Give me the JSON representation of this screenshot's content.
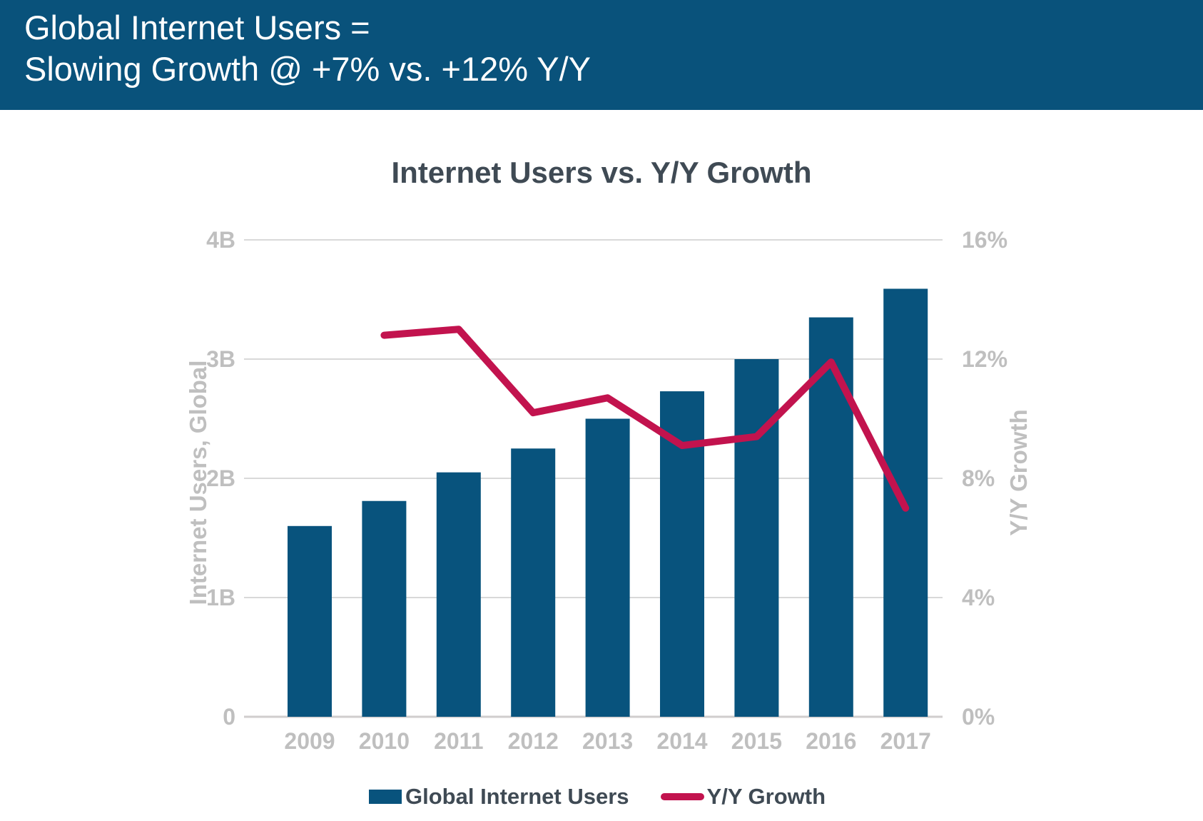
{
  "header": {
    "line1": "Global Internet Users =",
    "line2": "Slowing Growth @ +7% vs. +12% Y/Y",
    "bg_color": "#09527B",
    "text_color": "#FFFFFF"
  },
  "chart": {
    "title": "Internet Users vs. Y/Y Growth",
    "left_axis_title": "Internet Users, Global",
    "right_axis_title": "Y/Y Growth",
    "legend": {
      "bar_label": "Global Internet Users",
      "line_label": "Y/Y Growth"
    }
  },
  "chart_data": {
    "type": "bar",
    "subtype": "bar+line dual axis",
    "title": "Internet Users vs. Y/Y Growth",
    "categories": [
      "2009",
      "2010",
      "2011",
      "2012",
      "2013",
      "2014",
      "2015",
      "2016",
      "2017"
    ],
    "series": [
      {
        "name": "Global Internet Users",
        "type": "bar",
        "axis": "left",
        "unit": "billions",
        "values": [
          1.6,
          1.81,
          2.05,
          2.25,
          2.5,
          2.73,
          3.0,
          3.35,
          3.59
        ],
        "color": "#08537D"
      },
      {
        "name": "Y/Y Growth",
        "type": "line",
        "axis": "right",
        "unit": "percent",
        "values": [
          null,
          12.8,
          13.0,
          10.2,
          10.7,
          9.1,
          9.4,
          11.9,
          7.0
        ],
        "color": "#C2134E"
      }
    ],
    "left_axis": {
      "title": "Internet Users, Global",
      "tick_labels": [
        "0",
        "1B",
        "2B",
        "3B",
        "4B"
      ],
      "tick_values": [
        0,
        1,
        2,
        3,
        4
      ],
      "range": [
        0,
        4
      ]
    },
    "right_axis": {
      "title": "Y/Y Growth",
      "tick_labels": [
        "0%",
        "4%",
        "8%",
        "12%",
        "16%"
      ],
      "tick_values": [
        0,
        4,
        8,
        12,
        16
      ],
      "range": [
        0,
        16
      ]
    },
    "grid": true,
    "legend_position": "bottom",
    "colors": {
      "bar": "#08537D",
      "line": "#C2134E",
      "gridline": "#D9D9D9",
      "axis_line": "#D0CECE",
      "axis_text": "#BFBFBF",
      "title_text": "#3F4A54"
    }
  }
}
